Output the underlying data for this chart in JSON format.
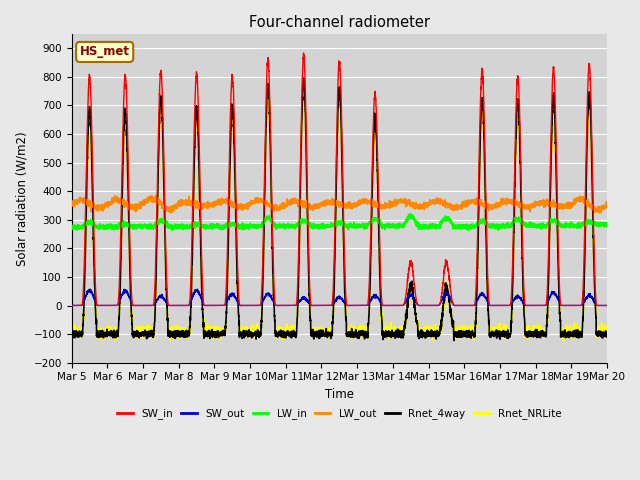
{
  "title": "Four-channel radiometer",
  "ylabel": "Solar radiation (W/m2)",
  "xlabel": "Time",
  "ylim": [
    -200,
    950
  ],
  "yticks": [
    -200,
    -100,
    0,
    100,
    200,
    300,
    400,
    500,
    600,
    700,
    800,
    900
  ],
  "n_days": 15,
  "start_day": 5,
  "ppd": 288,
  "station_label": "HS_met",
  "fig_facecolor": "#e8e8e8",
  "ax_facecolor": "#d4d4d4",
  "grid_color": "#ffffff",
  "line_colors": {
    "SW_in": "#ff0000",
    "SW_out": "#0000cc",
    "LW_in": "#00ff00",
    "LW_out": "#ff8800",
    "Rnet_4way": "#000000",
    "Rnet_NRLite": "#ffff00"
  },
  "line_widths": {
    "SW_in": 1.0,
    "SW_out": 1.0,
    "LW_in": 1.2,
    "LW_out": 1.2,
    "Rnet_4way": 1.2,
    "Rnet_NRLite": 1.2
  }
}
